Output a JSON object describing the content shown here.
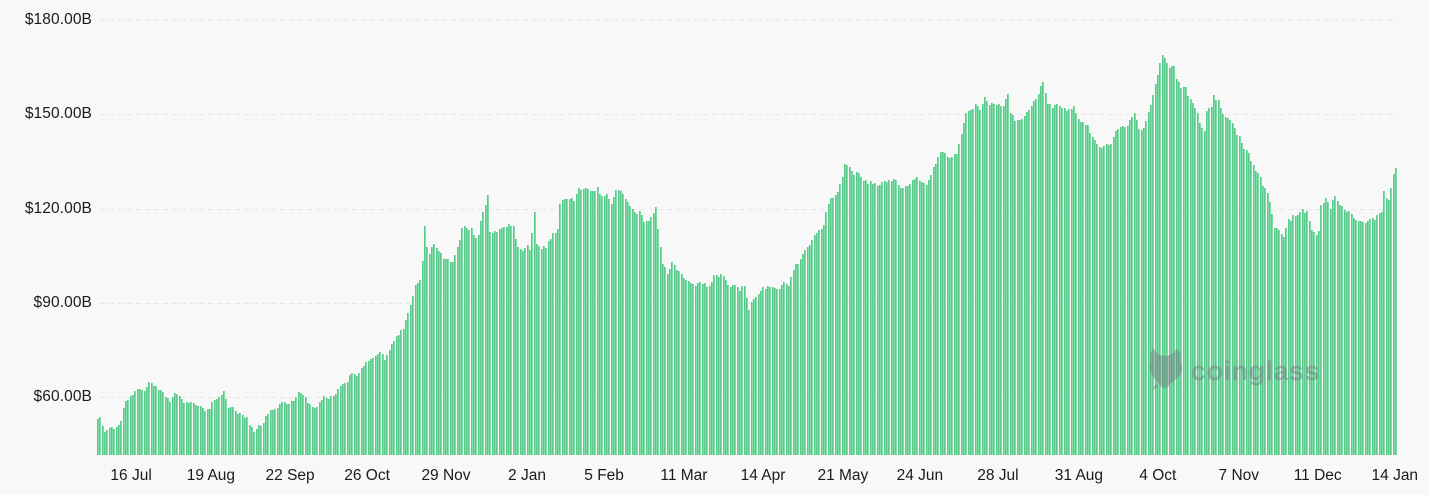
{
  "chart_data": {
    "type": "bar",
    "title": "",
    "grid": true,
    "legend": false,
    "bar_color": "#6ed49a",
    "y_axis": {
      "tick_labels": [
        "$180.00B",
        "$150.00B",
        "$120.00B",
        "$90.00B",
        "$60.00B"
      ],
      "tick_values": [
        180,
        150,
        120,
        90,
        60
      ],
      "unit": "USD billions",
      "baseline_value": 41.6
    },
    "x_axis": {
      "tick_labels": [
        "16 Jul",
        "19 Aug",
        "22 Sep",
        "26 Oct",
        "29 Nov",
        "2 Jan",
        "5 Feb",
        "11 Mar",
        "14 Apr",
        "21 May",
        "24 Jun",
        "28 Jul",
        "31 Aug",
        "4 Oct",
        "7 Nov",
        "11 Dec",
        "14 Jan"
      ],
      "tick_days": [
        14.6,
        48.8,
        82.7,
        115.7,
        149.5,
        184.2,
        217.2,
        251.4,
        285.3,
        319.5,
        352.5,
        385.9,
        420.6,
        454.4,
        489.1,
        522.9,
        555.9
      ]
    },
    "n_bars": 557,
    "samples_format": "[day_index, value_in_billions_usd]",
    "samples": [
      [
        0,
        52.5
      ],
      [
        1,
        53.3
      ],
      [
        3,
        49.5
      ],
      [
        5,
        50.2
      ],
      [
        7,
        49.8
      ],
      [
        9,
        50.8
      ],
      [
        10,
        53
      ],
      [
        11,
        56.5
      ],
      [
        12,
        58.8
      ],
      [
        14,
        59.8
      ],
      [
        16,
        61.5
      ],
      [
        18,
        62.5
      ],
      [
        20,
        62
      ],
      [
        22,
        64.3
      ],
      [
        23,
        64.8
      ],
      [
        25,
        63.5
      ],
      [
        27,
        62.5
      ],
      [
        29,
        60.5
      ],
      [
        31,
        58.8
      ],
      [
        33,
        60.8
      ],
      [
        35,
        60.2
      ],
      [
        37,
        58.8
      ],
      [
        39,
        58.2
      ],
      [
        41,
        57.6
      ],
      [
        44,
        56.5
      ],
      [
        46,
        55.6
      ],
      [
        48,
        56.5
      ],
      [
        50,
        59
      ],
      [
        52,
        60.5
      ],
      [
        54,
        61.2
      ],
      [
        56,
        57
      ],
      [
        58,
        56.5
      ],
      [
        60,
        54.8
      ],
      [
        62,
        54.3
      ],
      [
        64,
        53.5
      ],
      [
        66,
        50
      ],
      [
        67,
        49.5
      ],
      [
        69,
        50.5
      ],
      [
        71,
        52
      ],
      [
        73,
        55.4
      ],
      [
        75,
        55.9
      ],
      [
        77,
        56.8
      ],
      [
        79,
        57.7
      ],
      [
        81,
        58.5
      ],
      [
        83,
        58.2
      ],
      [
        85,
        60.5
      ],
      [
        87,
        61.8
      ],
      [
        89,
        60.5
      ],
      [
        91,
        57.2
      ],
      [
        93,
        56.2
      ],
      [
        95,
        58.2
      ],
      [
        97,
        60
      ],
      [
        99,
        59.3
      ],
      [
        101,
        60.1
      ],
      [
        103,
        62
      ],
      [
        105,
        63.7
      ],
      [
        107,
        65.3
      ],
      [
        109,
        67.5
      ],
      [
        111,
        66.6
      ],
      [
        113,
        68.8
      ],
      [
        115,
        70.7
      ],
      [
        117,
        72.2
      ],
      [
        119,
        73
      ],
      [
        121,
        73.8
      ],
      [
        123,
        72.5
      ],
      [
        125,
        75.5
      ],
      [
        127,
        78.2
      ],
      [
        129,
        80
      ],
      [
        131,
        82
      ],
      [
        133,
        87
      ],
      [
        135,
        92
      ],
      [
        136,
        95
      ],
      [
        137,
        96.5
      ],
      [
        138,
        97
      ],
      [
        139,
        103
      ],
      [
        140,
        114.8
      ],
      [
        141,
        107
      ],
      [
        142,
        105.5
      ],
      [
        144,
        108.8
      ],
      [
        146,
        106.5
      ],
      [
        148,
        104.5
      ],
      [
        150,
        103.8
      ],
      [
        152,
        103
      ],
      [
        154,
        107
      ],
      [
        156,
        114
      ],
      [
        158,
        113.5
      ],
      [
        160,
        113.8
      ],
      [
        162,
        110
      ],
      [
        163,
        111.5
      ],
      [
        164,
        116.8
      ],
      [
        166,
        121
      ],
      [
        167,
        124.1
      ],
      [
        168,
        113
      ],
      [
        170,
        112.3
      ],
      [
        172,
        113
      ],
      [
        174,
        114.2
      ],
      [
        176,
        115.2
      ],
      [
        178,
        113.7
      ],
      [
        179,
        110
      ],
      [
        180,
        107.5
      ],
      [
        182,
        106.4
      ],
      [
        184,
        109
      ],
      [
        185,
        107.5
      ],
      [
        187,
        118.5
      ],
      [
        188,
        108.5
      ],
      [
        190,
        107.4
      ],
      [
        192,
        108
      ],
      [
        194,
        110.6
      ],
      [
        196,
        112.5
      ],
      [
        197,
        113.5
      ],
      [
        198,
        121.7
      ],
      [
        200,
        122.5
      ],
      [
        202,
        123.3
      ],
      [
        204,
        122.5
      ],
      [
        206,
        125.9
      ],
      [
        208,
        126.5
      ],
      [
        210,
        125.6
      ],
      [
        212,
        125
      ],
      [
        214,
        126.8
      ],
      [
        216,
        123.5
      ],
      [
        218,
        124
      ],
      [
        220,
        121.8
      ],
      [
        222,
        125.5
      ],
      [
        224,
        126.3
      ],
      [
        226,
        123
      ],
      [
        228,
        121
      ],
      [
        230,
        119.2
      ],
      [
        232,
        118.6
      ],
      [
        234,
        116.2
      ],
      [
        236,
        115.9
      ],
      [
        237,
        118
      ],
      [
        239,
        120
      ],
      [
        240,
        113
      ],
      [
        242,
        103
      ],
      [
        244,
        99.5
      ],
      [
        246,
        102.5
      ],
      [
        248,
        100.5
      ],
      [
        251,
        98.5
      ],
      [
        253,
        96.5
      ],
      [
        256,
        95
      ],
      [
        259,
        96.5
      ],
      [
        262,
        95
      ],
      [
        264,
        98
      ],
      [
        267,
        99
      ],
      [
        269,
        97
      ],
      [
        271,
        95.5
      ],
      [
        273,
        96
      ],
      [
        275,
        94
      ],
      [
        277,
        95.5
      ],
      [
        279,
        88
      ],
      [
        281,
        91.5
      ],
      [
        283,
        93.5
      ],
      [
        285,
        94.5
      ],
      [
        288,
        95.5
      ],
      [
        291,
        94.5
      ],
      [
        294,
        96
      ],
      [
        296,
        95
      ],
      [
        298,
        101
      ],
      [
        300,
        103
      ],
      [
        302,
        105.5
      ],
      [
        304,
        107.5
      ],
      [
        306,
        110
      ],
      [
        308,
        112
      ],
      [
        310,
        113.5
      ],
      [
        311,
        115
      ],
      [
        313,
        122
      ],
      [
        315,
        123.9
      ],
      [
        317,
        125.5
      ],
      [
        319,
        130
      ],
      [
        320,
        134.3
      ],
      [
        322,
        132.5
      ],
      [
        324,
        130.5
      ],
      [
        326,
        131.4
      ],
      [
        328,
        129
      ],
      [
        331,
        128.2
      ],
      [
        334,
        127.3
      ],
      [
        336,
        127.8
      ],
      [
        339,
        129.5
      ],
      [
        341,
        128.9
      ],
      [
        344,
        127.2
      ],
      [
        347,
        126.6
      ],
      [
        349,
        129
      ],
      [
        351,
        130.4
      ],
      [
        353,
        128.3
      ],
      [
        355,
        127.3
      ],
      [
        357,
        131
      ],
      [
        358,
        133
      ],
      [
        360,
        136.5
      ],
      [
        362,
        138.3
      ],
      [
        364,
        136.5
      ],
      [
        366,
        135.8
      ],
      [
        368,
        137.5
      ],
      [
        370,
        143.5
      ],
      [
        372,
        150.5
      ],
      [
        374,
        151.5
      ],
      [
        376,
        153
      ],
      [
        378,
        151.5
      ],
      [
        380,
        156
      ],
      [
        382,
        153.5
      ],
      [
        384,
        152.5
      ],
      [
        386,
        153.2
      ],
      [
        388,
        153
      ],
      [
        390,
        157
      ],
      [
        391,
        151
      ],
      [
        393,
        148.2
      ],
      [
        395,
        148.8
      ],
      [
        397,
        149.3
      ],
      [
        399,
        151.8
      ],
      [
        401,
        153.5
      ],
      [
        403,
        156.5
      ],
      [
        405,
        160.9
      ],
      [
        407,
        154
      ],
      [
        409,
        152.5
      ],
      [
        411,
        153
      ],
      [
        413,
        152
      ],
      [
        416,
        151.5
      ],
      [
        418,
        151.8
      ],
      [
        420,
        148.5
      ],
      [
        422,
        147.5
      ],
      [
        424,
        146.3
      ],
      [
        426,
        143
      ],
      [
        428,
        140.5
      ],
      [
        430,
        140
      ],
      [
        432,
        140.8
      ],
      [
        434,
        140.3
      ],
      [
        436,
        145
      ],
      [
        438,
        146
      ],
      [
        440,
        145.5
      ],
      [
        442,
        148
      ],
      [
        444,
        150.5
      ],
      [
        446,
        146
      ],
      [
        448,
        145.3
      ],
      [
        450,
        150
      ],
      [
        452,
        156.6
      ],
      [
        453,
        159.2
      ],
      [
        454,
        162.4
      ],
      [
        455,
        166
      ],
      [
        456,
        168.8
      ],
      [
        458,
        167
      ],
      [
        459,
        164.5
      ],
      [
        461,
        166
      ],
      [
        462,
        162
      ],
      [
        464,
        158.8
      ],
      [
        466,
        158
      ],
      [
        468,
        154.5
      ],
      [
        470,
        152.5
      ],
      [
        472,
        147.5
      ],
      [
        474,
        144.3
      ],
      [
        475,
        151.7
      ],
      [
        477,
        152.5
      ],
      [
        478,
        156.5
      ],
      [
        480,
        154
      ],
      [
        482,
        150.5
      ],
      [
        484,
        148.9
      ],
      [
        486,
        147.3
      ],
      [
        488,
        143.3
      ],
      [
        489,
        142.7
      ],
      [
        490,
        140.4
      ],
      [
        491,
        139.4
      ],
      [
        493,
        137
      ],
      [
        495,
        134
      ],
      [
        497,
        131.5
      ],
      [
        499,
        127.5
      ],
      [
        501,
        124.3
      ],
      [
        502,
        122.2
      ],
      [
        504,
        114.5
      ],
      [
        506,
        112.5
      ],
      [
        508,
        111.5
      ],
      [
        510,
        116
      ],
      [
        512,
        117.5
      ],
      [
        514,
        118
      ],
      [
        516,
        119.5
      ],
      [
        518,
        118.5
      ],
      [
        520,
        112.8
      ],
      [
        522,
        112
      ],
      [
        523,
        112.3
      ],
      [
        524,
        121
      ],
      [
        526,
        123
      ],
      [
        528,
        120.5
      ],
      [
        530,
        124
      ],
      [
        532,
        121.5
      ],
      [
        534,
        120
      ],
      [
        536,
        119
      ],
      [
        538,
        116.5
      ],
      [
        540,
        116.3
      ],
      [
        543,
        116
      ],
      [
        546,
        116.5
      ],
      [
        548,
        117.5
      ],
      [
        550,
        119.3
      ],
      [
        551,
        125.5
      ],
      [
        552,
        123.5
      ],
      [
        553,
        122
      ],
      [
        554,
        126.5
      ],
      [
        555,
        131
      ],
      [
        556,
        133
      ]
    ]
  },
  "watermark": {
    "text": "coinglass",
    "icon": "coinglass-bull-icon"
  },
  "colors": {
    "background": "#f8f8f9",
    "bar_fill": "#80dda7",
    "bar_edge": "#5bc98c",
    "gridline": "#e6e7ea",
    "axis_text": "#1a1b1e",
    "watermark": "#79828a"
  }
}
